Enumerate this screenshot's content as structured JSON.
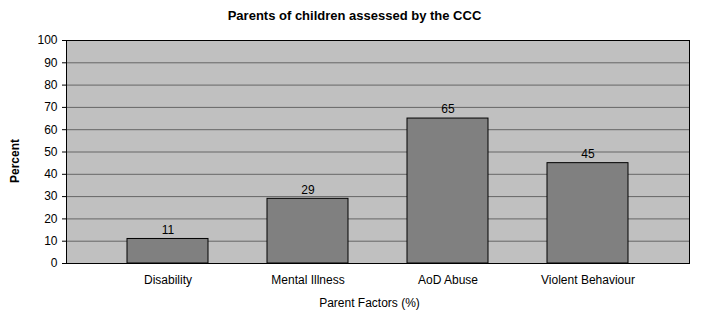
{
  "chart_data": {
    "type": "bar",
    "title": "Parents of children assessed by the CCC",
    "x_label": "Parent Factors (%)",
    "y_label": "Percent",
    "categories": [
      "Disability",
      "Mental Illness",
      "AoD Abuse",
      "Violent Behaviour"
    ],
    "values": [
      11,
      29,
      65,
      45
    ],
    "color": "#808080",
    "ylim": [
      0,
      100
    ],
    "yticks": [
      0,
      10,
      20,
      30,
      40,
      50,
      60,
      70,
      80,
      90,
      100
    ],
    "grid": true,
    "data_labels": true
  }
}
